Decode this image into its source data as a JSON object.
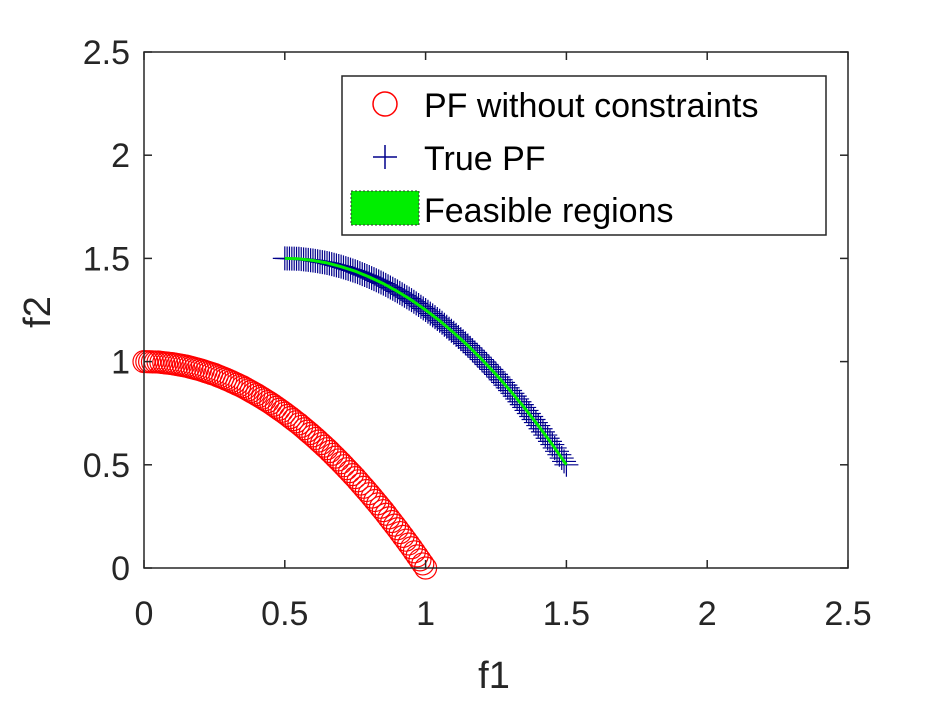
{
  "chart_data": {
    "type": "scatter",
    "xlabel": "f1",
    "ylabel": "f2",
    "xlim": [
      0,
      2.5
    ],
    "ylim": [
      0,
      2.5
    ],
    "xticks": [
      "0",
      "0.5",
      "1",
      "1.5",
      "2",
      "2.5"
    ],
    "yticks": [
      "0",
      "0.5",
      "1",
      "1.5",
      "2",
      "2.5"
    ],
    "grid": false,
    "legend_position": "top-right",
    "series": [
      {
        "name": "PF without constraints",
        "marker": "circle",
        "color": "#ff0000",
        "x": [
          0.0,
          0.05,
          0.1,
          0.15,
          0.2,
          0.25,
          0.3,
          0.35,
          0.4,
          0.45,
          0.5,
          0.55,
          0.6,
          0.65,
          0.7,
          0.75,
          0.8,
          0.85,
          0.9,
          0.95,
          1.0
        ],
        "y": [
          1.0,
          0.998,
          0.99,
          0.978,
          0.96,
          0.938,
          0.91,
          0.878,
          0.84,
          0.798,
          0.75,
          0.698,
          0.64,
          0.578,
          0.51,
          0.438,
          0.36,
          0.278,
          0.19,
          0.098,
          0.0
        ]
      },
      {
        "name": "True PF",
        "marker": "plus",
        "color": "#00008b",
        "x": [
          0.5,
          0.55,
          0.6,
          0.65,
          0.7,
          0.75,
          0.8,
          0.85,
          0.9,
          0.95,
          1.0,
          1.05,
          1.1,
          1.15,
          1.2,
          1.25,
          1.3,
          1.35,
          1.4,
          1.45,
          1.5
        ],
        "y": [
          1.5,
          1.498,
          1.49,
          1.478,
          1.46,
          1.438,
          1.41,
          1.378,
          1.34,
          1.298,
          1.25,
          1.198,
          1.14,
          1.078,
          1.01,
          0.938,
          0.86,
          0.778,
          0.69,
          0.598,
          0.5
        ]
      }
    ],
    "regions": [
      {
        "name": "Feasible regions",
        "color": "#00ee00",
        "note": "thin band along True PF"
      }
    ]
  }
}
